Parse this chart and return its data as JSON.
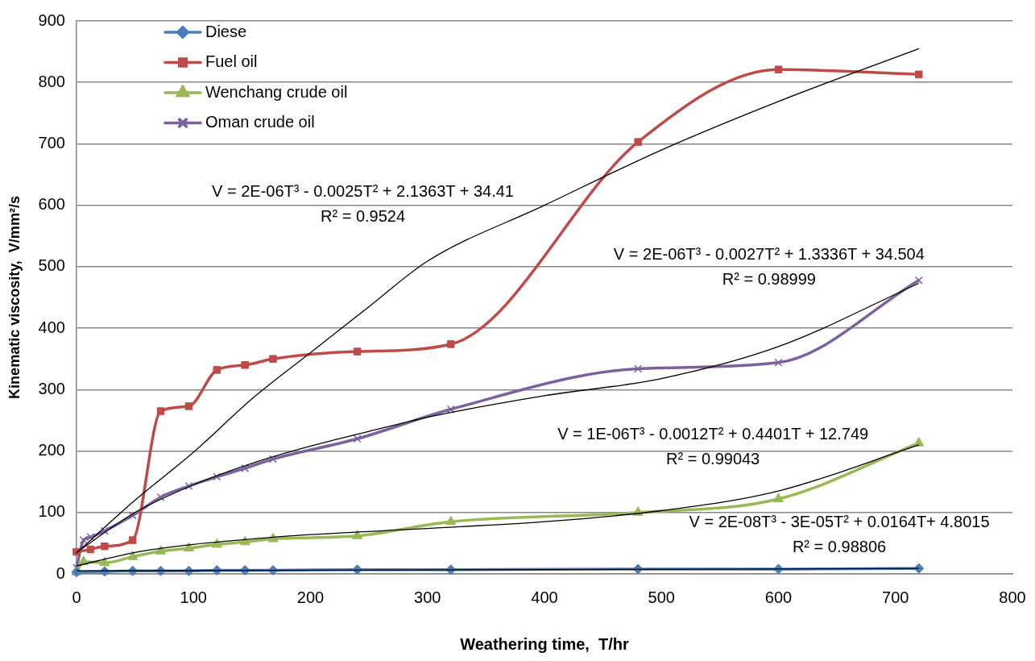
{
  "chart_data": {
    "type": "line",
    "xlabel": "Weathering time,  T/hr",
    "ylabel": "Kinematic viscosity,  V/mm²/s",
    "xlim": [
      0,
      800
    ],
    "xticks": [
      0,
      100,
      200,
      300,
      400,
      500,
      600,
      700,
      800
    ],
    "ylim": [
      0,
      900
    ],
    "yticks": [
      0,
      100,
      200,
      300,
      400,
      500,
      600,
      700,
      800,
      900
    ],
    "grid": "y",
    "legend": "top left",
    "series": [
      {
        "name": "Diese",
        "color": "#4a7ebb",
        "marker": "diamond",
        "x": [
          0,
          24,
          48,
          72,
          96,
          120,
          144,
          168,
          240,
          320,
          480,
          600,
          720
        ],
        "values": [
          3,
          4,
          5,
          5,
          5,
          6,
          6,
          6,
          7,
          7,
          8,
          8,
          9
        ]
      },
      {
        "name": "Fuel oil",
        "color": "#be4b48",
        "marker": "square",
        "x": [
          0,
          12,
          24,
          48,
          72,
          96,
          120,
          144,
          168,
          240,
          320,
          480,
          600,
          720
        ],
        "values": [
          36,
          40,
          45,
          55,
          265,
          273,
          332,
          340,
          350,
          362,
          374,
          703,
          821,
          813
        ]
      },
      {
        "name": "Wenchang crude oil",
        "color": "#98b954",
        "marker": "triangle",
        "x": [
          0,
          6,
          24,
          48,
          72,
          96,
          120,
          144,
          168,
          240,
          320,
          480,
          600,
          720
        ],
        "values": [
          3,
          20,
          18,
          28,
          37,
          42,
          48,
          52,
          57,
          62,
          85,
          100,
          122,
          213
        ]
      },
      {
        "name": "Oman crude oil",
        "color": "#7d60a0",
        "marker": "cross",
        "x": [
          0,
          6,
          12,
          24,
          48,
          72,
          96,
          120,
          144,
          168,
          240,
          320,
          480,
          600,
          720
        ],
        "values": [
          10,
          55,
          60,
          70,
          95,
          125,
          143,
          158,
          172,
          187,
          220,
          268,
          334,
          344,
          478
        ]
      },
      {
        "type": "line",
        "color": "#000000",
        "marker": "none",
        "x": [
          0,
          50,
          100,
          150,
          200,
          250,
          300,
          400,
          500,
          600,
          720
        ],
        "values": [
          34,
          120,
          198,
          285,
          360,
          435,
          509,
          600,
          690,
          769,
          855
        ]
      },
      {
        "type": "line",
        "color": "#000000",
        "marker": "none",
        "x": [
          0,
          50,
          100,
          150,
          200,
          250,
          300,
          400,
          500,
          600,
          720
        ],
        "values": [
          35,
          100,
          145,
          180,
          208,
          232,
          255,
          290,
          318,
          370,
          473
        ]
      },
      {
        "type": "line",
        "color": "#000000",
        "marker": "none",
        "x": [
          0,
          50,
          100,
          150,
          200,
          300,
          400,
          500,
          600,
          720
        ],
        "values": [
          13,
          35,
          48,
          57,
          64,
          74,
          85,
          103,
          135,
          210
        ]
      },
      {
        "type": "line",
        "color": "#000000",
        "marker": "none",
        "x": [
          0,
          200,
          400,
          600,
          720
        ],
        "values": [
          5,
          6,
          7,
          8,
          9
        ]
      }
    ],
    "annotations": [
      "V = 2E-06T³ - 0.0025T² + 2.1363T + 34.41",
      "R² = 0.9524",
      "V = 2E-06T³ - 0.0027T² + 1.3336T + 34.504",
      "R² = 0.98999",
      "V = 1E-06T³ - 0.0012T² + 0.4401T + 12.749",
      "R² = 0.99043",
      "V = 2E-08T³ - 3E-05T² + 0.0164T+ 4.8015",
      "R² = 0.98806"
    ]
  }
}
